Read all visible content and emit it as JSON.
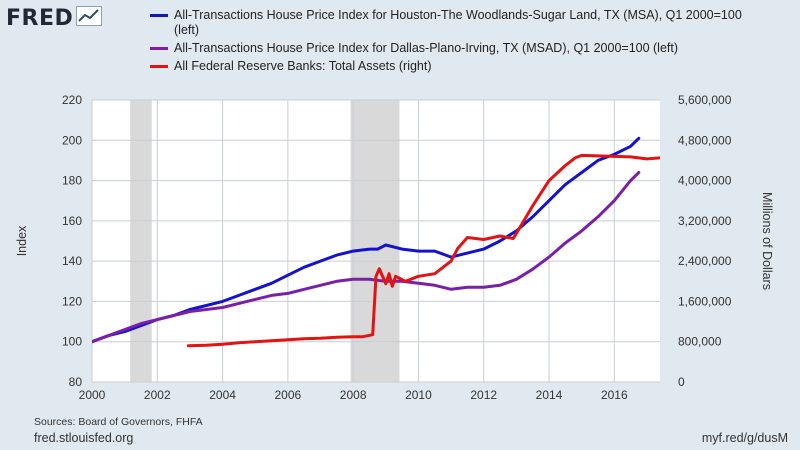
{
  "brand": {
    "logo_text": "FRED",
    "icon": "line-chart-icon"
  },
  "legend": [
    {
      "label": "All-Transactions House Price Index for Houston-The Woodlands-Sugar Land, TX (MSA), Q1 2000=100",
      "label2": "(left)",
      "color": "#1212cf"
    },
    {
      "label": "All-Transactions House Price Index for Dallas-Plano-Irving, TX (MSAD), Q1 2000=100 (left)",
      "color": "#7a1fa8"
    },
    {
      "label": "All Federal Reserve Banks: Total Assets (right)",
      "color": "#e31313"
    }
  ],
  "footer": {
    "sources": "Sources: Board of Governors, FHFA",
    "site": "fred.stlouisfed.org",
    "short_url": "myf.red/g/dusM"
  },
  "chart_data": {
    "type": "line",
    "ylabel": "Index",
    "y2label": "Millions of Dollars",
    "xlim": [
      2000,
      2017.4
    ],
    "ylim": [
      80,
      220
    ],
    "y2lim": [
      0,
      5600000
    ],
    "xticks": [
      "2000",
      "2002",
      "2004",
      "2006",
      "2008",
      "2010",
      "2012",
      "2014",
      "2016"
    ],
    "yticks": [
      "80",
      "100",
      "120",
      "140",
      "160",
      "180",
      "200",
      "220"
    ],
    "y2ticks": [
      "0",
      "800,000",
      "1,600,000",
      "2,400,000",
      "3,200,000",
      "4,000,000",
      "4,800,000",
      "5,600,000"
    ],
    "grid": true,
    "recessions": [
      [
        2001.17,
        2001.83
      ],
      [
        2007.92,
        2009.42
      ]
    ],
    "colors": {
      "houston": "#1212cf",
      "dallas": "#7a1fa8",
      "assets": "#e31313",
      "recession": "#d9d9d9",
      "plot_bg": "#ffffff"
    },
    "series": [
      {
        "name": "All-Transactions House Price Index for Houston-The Woodlands-Sugar Land, TX (MSA), Q1 2000=100",
        "axis": "left",
        "x": [
          2000,
          2000.5,
          2001,
          2001.5,
          2002,
          2002.5,
          2003,
          2003.5,
          2004,
          2004.5,
          2005,
          2005.5,
          2006,
          2006.5,
          2007,
          2007.5,
          2008,
          2008.5,
          2008.75,
          2009,
          2009.5,
          2010,
          2010.5,
          2011,
          2011.5,
          2012,
          2012.5,
          2013,
          2013.5,
          2014,
          2014.5,
          2015,
          2015.5,
          2016,
          2016.5,
          2016.75
        ],
        "values": [
          100,
          103,
          105,
          108,
          111,
          113,
          116,
          118,
          120,
          123,
          126,
          129,
          133,
          137,
          140,
          143,
          145,
          146,
          146,
          148,
          146,
          145,
          145,
          142,
          144,
          146,
          150,
          155,
          162,
          170,
          178,
          184,
          190,
          193,
          197,
          201
        ]
      },
      {
        "name": "All-Transactions House Price Index for Dallas-Plano-Irving, TX (MSAD), Q1 2000=100 (left)",
        "axis": "left",
        "x": [
          2000,
          2000.5,
          2001,
          2001.5,
          2002,
          2002.5,
          2003,
          2003.5,
          2004,
          2004.5,
          2005,
          2005.5,
          2006,
          2006.5,
          2007,
          2007.5,
          2008,
          2008.5,
          2009,
          2009.5,
          2010,
          2010.5,
          2011,
          2011.5,
          2012,
          2012.5,
          2013,
          2013.5,
          2014,
          2014.5,
          2015,
          2015.5,
          2016,
          2016.5,
          2016.75
        ],
        "values": [
          100,
          103,
          106,
          109,
          111,
          113,
          115,
          116,
          117,
          119,
          121,
          123,
          124,
          126,
          128,
          130,
          131,
          131,
          130,
          130,
          129,
          128,
          126,
          127,
          127,
          128,
          131,
          136,
          142,
          149,
          155,
          162,
          170,
          180,
          184
        ]
      },
      {
        "name": "All Federal Reserve Banks: Total Assets (right)",
        "axis": "right",
        "x": [
          2002.95,
          2003.5,
          2004,
          2004.5,
          2005,
          2005.5,
          2006,
          2006.5,
          2007,
          2007.5,
          2008,
          2008.3,
          2008.6,
          2008.7,
          2008.8,
          2009,
          2009.1,
          2009.2,
          2009.3,
          2009.45,
          2009.6,
          2010,
          2010.5,
          2011,
          2011.2,
          2011.5,
          2012,
          2012.5,
          2012.9,
          2013,
          2013.5,
          2014,
          2014.5,
          2014.8,
          2015,
          2015.5,
          2016,
          2016.5,
          2017,
          2017.4
        ],
        "values": [
          720000,
          730000,
          750000,
          780000,
          800000,
          820000,
          840000,
          860000,
          870000,
          890000,
          900000,
          900000,
          940000,
          2100000,
          2250000,
          1950000,
          2150000,
          1900000,
          2100000,
          2050000,
          2000000,
          2100000,
          2150000,
          2400000,
          2650000,
          2870000,
          2830000,
          2900000,
          2850000,
          2950000,
          3500000,
          4000000,
          4300000,
          4450000,
          4500000,
          4490000,
          4480000,
          4470000,
          4430000,
          4450000
        ]
      }
    ]
  }
}
